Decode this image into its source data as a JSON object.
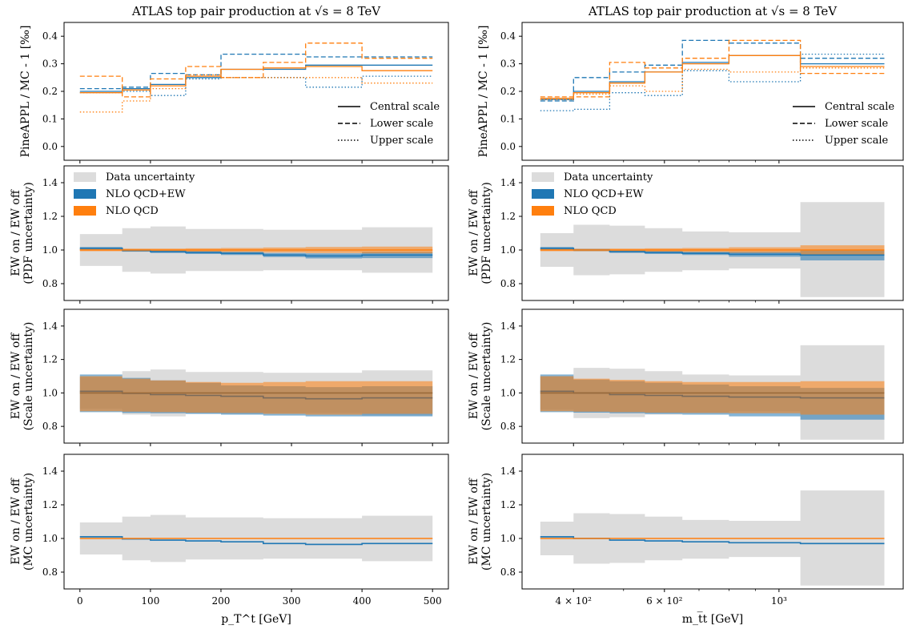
{
  "figure": {
    "left_title": "ATLAS top pair production at √s = 8 TeV",
    "right_title": "ATLAS top pair production at √s = 8 TeV",
    "left_xlabel": "p_T^t [GeV]",
    "right_xlabel": "m_t̅t [GeV]"
  },
  "colors": {
    "ew_on": "#1f77b4",
    "ew_off": "#ff7f0e",
    "data_band": "#dcdcdc"
  },
  "chart_data": [
    {
      "type": "line",
      "panel": "left-top",
      "title": "ATLAS top pair production at √s = 8 TeV",
      "ylabel": "PineAPPL / MC - 1 [‰]",
      "ylim": [
        -0.05,
        0.45
      ],
      "yticks": [
        "0.0",
        "0.1",
        "0.2",
        "0.3",
        "0.4"
      ],
      "bin_edges": [
        0,
        60,
        100,
        150,
        200,
        260,
        320,
        400,
        500
      ],
      "legend": [
        "Central scale",
        "Lower scale",
        "Upper scale"
      ],
      "series": [
        {
          "name": "NLO QCD+EW",
          "scale": "central",
          "values": [
            0.2,
            0.21,
            0.225,
            0.25,
            0.28,
            0.28,
            0.295,
            0.295
          ]
        },
        {
          "name": "NLO QCD+EW",
          "scale": "lower",
          "values": [
            0.21,
            0.215,
            0.265,
            0.26,
            0.335,
            0.335,
            0.325,
            0.325
          ]
        },
        {
          "name": "NLO QCD+EW",
          "scale": "upper",
          "values": [
            0.195,
            0.2,
            0.185,
            0.245,
            0.25,
            0.25,
            0.215,
            0.255
          ]
        },
        {
          "name": "NLO QCD",
          "scale": "central",
          "values": [
            0.195,
            0.205,
            0.22,
            0.255,
            0.28,
            0.285,
            0.29,
            0.275
          ]
        },
        {
          "name": "NLO QCD",
          "scale": "lower",
          "values": [
            0.255,
            0.18,
            0.245,
            0.29,
            0.25,
            0.305,
            0.375,
            0.32
          ]
        },
        {
          "name": "NLO QCD",
          "scale": "upper",
          "values": [
            0.125,
            0.165,
            0.21,
            0.26,
            0.25,
            0.25,
            0.25,
            0.23
          ]
        }
      ]
    },
    {
      "type": "line",
      "panel": "right-top",
      "title": "ATLAS top pair production at √s = 8 TeV",
      "ylabel": "PineAPPL / MC - 1 [‰]",
      "ylim": [
        -0.05,
        0.45
      ],
      "yticks": [
        "0.0",
        "0.1",
        "0.2",
        "0.3",
        "0.4"
      ],
      "bin_edges": [
        345,
        400,
        470,
        550,
        650,
        800,
        1100,
        1600
      ],
      "xscale": "log",
      "xticks": [
        "4 × 10²",
        "6 × 10²",
        "10³"
      ],
      "legend": [
        "Central scale",
        "Lower scale",
        "Upper scale"
      ],
      "series": [
        {
          "name": "NLO QCD+EW",
          "scale": "central",
          "values": [
            0.17,
            0.2,
            0.235,
            0.27,
            0.305,
            0.33,
            0.3
          ]
        },
        {
          "name": "NLO QCD+EW",
          "scale": "lower",
          "values": [
            0.165,
            0.25,
            0.27,
            0.295,
            0.385,
            0.375,
            0.32
          ]
        },
        {
          "name": "NLO QCD+EW",
          "scale": "upper",
          "values": [
            0.13,
            0.135,
            0.195,
            0.185,
            0.275,
            0.235,
            0.335
          ]
        },
        {
          "name": "NLO QCD",
          "scale": "central",
          "values": [
            0.175,
            0.195,
            0.23,
            0.27,
            0.3,
            0.33,
            0.29
          ]
        },
        {
          "name": "NLO QCD",
          "scale": "lower",
          "values": [
            0.18,
            0.18,
            0.305,
            0.285,
            0.32,
            0.385,
            0.265
          ]
        },
        {
          "name": "NLO QCD",
          "scale": "upper",
          "values": [
            0.17,
            0.19,
            0.22,
            0.2,
            0.28,
            0.27,
            0.285
          ]
        }
      ]
    },
    {
      "type": "area",
      "panel": "left-pdf",
      "ylabel": "EW on / EW off",
      "ylabel2": "(PDF uncertainty)",
      "ylim": [
        0.7,
        1.5
      ],
      "yticks": [
        "0.8",
        "1.0",
        "1.2",
        "1.4"
      ],
      "bin_edges": [
        0,
        60,
        100,
        150,
        200,
        260,
        320,
        400,
        500
      ],
      "legend": [
        "Data uncertainty",
        "NLO QCD+EW",
        "NLO QCD"
      ],
      "data_band": {
        "lo": [
          0.905,
          0.87,
          0.86,
          0.875,
          0.875,
          0.88,
          0.88,
          0.865
        ],
        "hi": [
          1.095,
          1.13,
          1.14,
          1.125,
          1.125,
          1.12,
          1.12,
          1.135
        ]
      },
      "series": [
        {
          "name": "NLO QCD+EW",
          "values": [
            1.01,
            0.997,
            0.99,
            0.985,
            0.98,
            0.97,
            0.965,
            0.97
          ],
          "lo": [
            1.0,
            0.99,
            0.982,
            0.976,
            0.97,
            0.958,
            0.95,
            0.952
          ],
          "hi": [
            1.018,
            1.005,
            0.998,
            0.994,
            0.99,
            0.982,
            0.98,
            0.988
          ]
        },
        {
          "name": "NLO QCD",
          "values": [
            1.0,
            1.0,
            1.0,
            1.0,
            1.0,
            1.0,
            1.0,
            1.0
          ],
          "lo": [
            0.993,
            0.992,
            0.992,
            0.99,
            0.988,
            0.985,
            0.982,
            0.98
          ],
          "hi": [
            1.007,
            1.008,
            1.008,
            1.01,
            1.012,
            1.015,
            1.018,
            1.02
          ]
        }
      ]
    },
    {
      "type": "area",
      "panel": "right-pdf",
      "ylabel": "EW on / EW off",
      "ylabel2": "(PDF uncertainty)",
      "ylim": [
        0.7,
        1.5
      ],
      "yticks": [
        "0.8",
        "1.0",
        "1.2",
        "1.4"
      ],
      "bin_edges": [
        345,
        400,
        470,
        550,
        650,
        800,
        1100,
        1600
      ],
      "xscale": "log",
      "xticks": [
        "4 × 10²",
        "6 × 10²",
        "10³"
      ],
      "legend": [
        "Data uncertainty",
        "NLO QCD+EW",
        "NLO QCD"
      ],
      "data_band": {
        "lo": [
          0.9,
          0.85,
          0.855,
          0.87,
          0.88,
          0.89,
          0.72
        ],
        "hi": [
          1.1,
          1.15,
          1.145,
          1.13,
          1.11,
          1.105,
          1.285
        ]
      },
      "series": [
        {
          "name": "NLO QCD+EW",
          "values": [
            1.01,
            1.0,
            0.99,
            0.985,
            0.98,
            0.975,
            0.97
          ],
          "lo": [
            1.002,
            0.993,
            0.983,
            0.976,
            0.97,
            0.96,
            0.938
          ],
          "hi": [
            1.018,
            1.007,
            0.997,
            0.994,
            0.99,
            0.99,
            1.0
          ]
        },
        {
          "name": "NLO QCD",
          "values": [
            1.0,
            1.0,
            1.0,
            1.0,
            1.0,
            1.0,
            1.0
          ],
          "lo": [
            0.993,
            0.993,
            0.992,
            0.99,
            0.988,
            0.984,
            0.972
          ],
          "hi": [
            1.007,
            1.007,
            1.008,
            1.01,
            1.012,
            1.016,
            1.028
          ]
        }
      ]
    },
    {
      "type": "area",
      "panel": "left-scale",
      "ylabel": "EW on / EW off",
      "ylabel2": "(Scale uncertainty)",
      "ylim": [
        0.7,
        1.5
      ],
      "yticks": [
        "0.8",
        "1.0",
        "1.2",
        "1.4"
      ],
      "bin_edges": [
        0,
        60,
        100,
        150,
        200,
        260,
        320,
        400,
        500
      ],
      "data_band": {
        "lo": [
          0.905,
          0.87,
          0.86,
          0.875,
          0.875,
          0.88,
          0.88,
          0.865
        ],
        "hi": [
          1.095,
          1.13,
          1.14,
          1.125,
          1.125,
          1.12,
          1.12,
          1.135
        ]
      },
      "series": [
        {
          "name": "NLO QCD+EW",
          "values": [
            1.01,
            0.997,
            0.99,
            0.985,
            0.98,
            0.97,
            0.965,
            0.97
          ],
          "lo": [
            0.885,
            0.88,
            0.878,
            0.875,
            0.87,
            0.865,
            0.86,
            0.86
          ],
          "hi": [
            1.11,
            1.09,
            1.075,
            1.06,
            1.045,
            1.04,
            1.035,
            1.04
          ]
        },
        {
          "name": "NLO QCD",
          "values": [
            1.0,
            1.0,
            1.0,
            1.0,
            1.0,
            1.0,
            1.0,
            1.0
          ],
          "lo": [
            0.89,
            0.888,
            0.885,
            0.882,
            0.88,
            0.875,
            0.87,
            0.875
          ],
          "hi": [
            1.1,
            1.085,
            1.075,
            1.065,
            1.06,
            1.065,
            1.07,
            1.07
          ]
        }
      ]
    },
    {
      "type": "area",
      "panel": "right-scale",
      "ylabel": "EW on / EW off",
      "ylabel2": "(Scale uncertainty)",
      "ylim": [
        0.7,
        1.5
      ],
      "yticks": [
        "0.8",
        "1.0",
        "1.2",
        "1.4"
      ],
      "bin_edges": [
        345,
        400,
        470,
        550,
        650,
        800,
        1100,
        1600
      ],
      "xscale": "log",
      "xticks": [
        "4 × 10²",
        "6 × 10²",
        "10³"
      ],
      "data_band": {
        "lo": [
          0.9,
          0.85,
          0.855,
          0.87,
          0.88,
          0.89,
          0.72
        ],
        "hi": [
          1.1,
          1.15,
          1.145,
          1.13,
          1.11,
          1.105,
          1.285
        ]
      },
      "series": [
        {
          "name": "NLO QCD+EW",
          "values": [
            1.01,
            1.0,
            0.99,
            0.985,
            0.98,
            0.975,
            0.97
          ],
          "lo": [
            0.885,
            0.882,
            0.878,
            0.875,
            0.87,
            0.86,
            0.84
          ],
          "hi": [
            1.11,
            1.08,
            1.07,
            1.06,
            1.05,
            1.04,
            1.03
          ]
        },
        {
          "name": "NLO QCD",
          "values": [
            1.0,
            1.0,
            1.0,
            1.0,
            1.0,
            1.0,
            1.0
          ],
          "lo": [
            0.89,
            0.888,
            0.885,
            0.882,
            0.88,
            0.878,
            0.87
          ],
          "hi": [
            1.1,
            1.085,
            1.078,
            1.07,
            1.065,
            1.065,
            1.07
          ]
        }
      ]
    },
    {
      "type": "line",
      "panel": "left-mc",
      "ylabel": "EW on / EW off",
      "ylabel2": "(MC uncertainty)",
      "ylim": [
        0.7,
        1.5
      ],
      "yticks": [
        "0.8",
        "1.0",
        "1.2",
        "1.4"
      ],
      "bin_edges": [
        0,
        60,
        100,
        150,
        200,
        260,
        320,
        400,
        500
      ],
      "xlabel": "p_T^t [GeV]",
      "xticks": [
        "0",
        "100",
        "200",
        "300",
        "400",
        "500"
      ],
      "data_band": {
        "lo": [
          0.905,
          0.87,
          0.86,
          0.875,
          0.875,
          0.88,
          0.88,
          0.865
        ],
        "hi": [
          1.095,
          1.13,
          1.14,
          1.125,
          1.125,
          1.12,
          1.12,
          1.135
        ]
      },
      "series": [
        {
          "name": "NLO QCD+EW",
          "values": [
            1.01,
            0.997,
            0.99,
            0.985,
            0.98,
            0.97,
            0.965,
            0.97
          ],
          "lo": [
            1.006,
            0.994,
            0.987,
            0.982,
            0.977,
            0.967,
            0.962,
            0.967
          ],
          "hi": [
            1.014,
            1.0,
            0.993,
            0.988,
            0.983,
            0.973,
            0.968,
            0.973
          ]
        },
        {
          "name": "NLO QCD",
          "values": [
            1.0,
            1.0,
            1.0,
            1.0,
            1.0,
            1.0,
            1.0,
            1.0
          ],
          "lo": [
            0.998,
            0.998,
            0.998,
            0.998,
            0.998,
            0.998,
            0.998,
            0.998
          ],
          "hi": [
            1.002,
            1.002,
            1.002,
            1.002,
            1.002,
            1.002,
            1.002,
            1.002
          ]
        }
      ]
    },
    {
      "type": "line",
      "panel": "right-mc",
      "ylabel": "EW on / EW off",
      "ylabel2": "(MC uncertainty)",
      "ylim": [
        0.7,
        1.5
      ],
      "yticks": [
        "0.8",
        "1.0",
        "1.2",
        "1.4"
      ],
      "bin_edges": [
        345,
        400,
        470,
        550,
        650,
        800,
        1100,
        1600
      ],
      "xscale": "log",
      "xlabel": "m_t̅t [GeV]",
      "xticks": [
        "4 × 10²",
        "6 × 10²",
        "10³"
      ],
      "data_band": {
        "lo": [
          0.9,
          0.85,
          0.855,
          0.87,
          0.88,
          0.89,
          0.72
        ],
        "hi": [
          1.1,
          1.15,
          1.145,
          1.13,
          1.11,
          1.105,
          1.285
        ]
      },
      "series": [
        {
          "name": "NLO QCD+EW",
          "values": [
            1.01,
            1.0,
            0.99,
            0.985,
            0.98,
            0.975,
            0.97
          ],
          "lo": [
            1.006,
            0.997,
            0.987,
            0.982,
            0.977,
            0.972,
            0.966
          ],
          "hi": [
            1.014,
            1.003,
            0.993,
            0.988,
            0.983,
            0.978,
            0.974
          ]
        },
        {
          "name": "NLO QCD",
          "values": [
            1.0,
            1.0,
            1.0,
            1.0,
            1.0,
            1.0,
            1.0
          ],
          "lo": [
            0.998,
            0.998,
            0.998,
            0.998,
            0.998,
            0.998,
            0.998
          ],
          "hi": [
            1.002,
            1.002,
            1.002,
            1.002,
            1.002,
            1.002,
            1.002
          ]
        }
      ]
    }
  ]
}
